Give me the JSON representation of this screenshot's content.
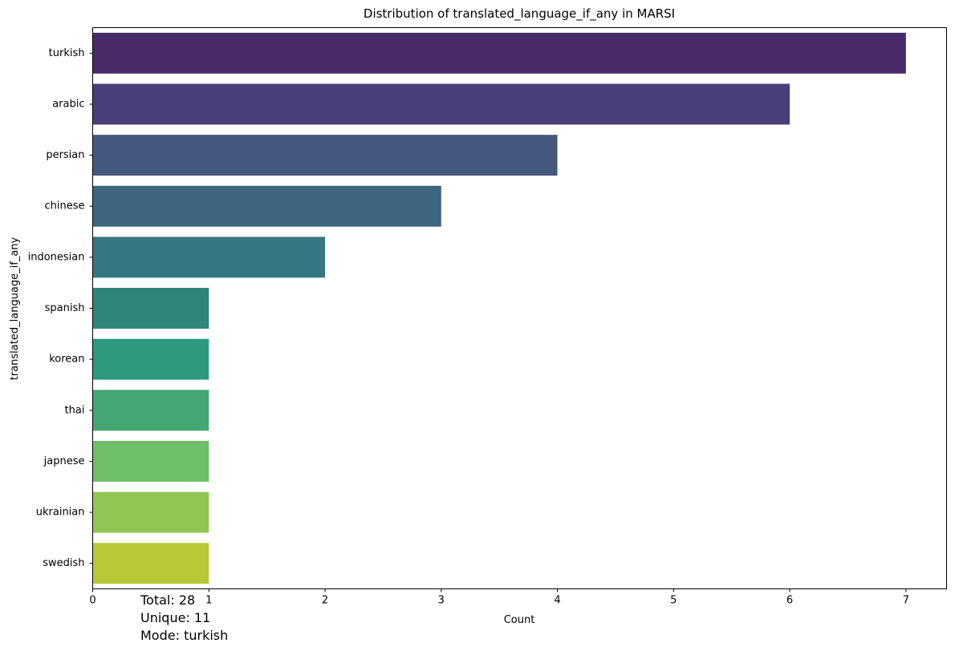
{
  "chart_data": {
    "type": "bar",
    "orientation": "horizontal",
    "title": "Distribution of translated_language_if_any in MARSI",
    "xlabel": "Count",
    "ylabel": "translated_language_if_any",
    "categories": [
      "turkish",
      "arabic",
      "persian",
      "chinese",
      "indonesian",
      "spanish",
      "korean",
      "thai",
      "japnese",
      "ukrainian",
      "swedish"
    ],
    "values": [
      7,
      6,
      4,
      3,
      2,
      1,
      1,
      1,
      1,
      1,
      1
    ],
    "colors": [
      "#482a68",
      "#4a3f7b",
      "#45597f",
      "#3d6580",
      "#347782",
      "#2e8579",
      "#2d9a7f",
      "#44a672",
      "#6ebe6a",
      "#92c653",
      "#b8c935"
    ],
    "xlim": [
      0,
      7.35
    ],
    "xticks": [
      0,
      1,
      2,
      3,
      4,
      5,
      6,
      7
    ],
    "grid": false,
    "palette": "viridis"
  },
  "stats": {
    "total": "Total: 28",
    "unique": "Unique: 11",
    "mode": "Mode: turkish"
  }
}
